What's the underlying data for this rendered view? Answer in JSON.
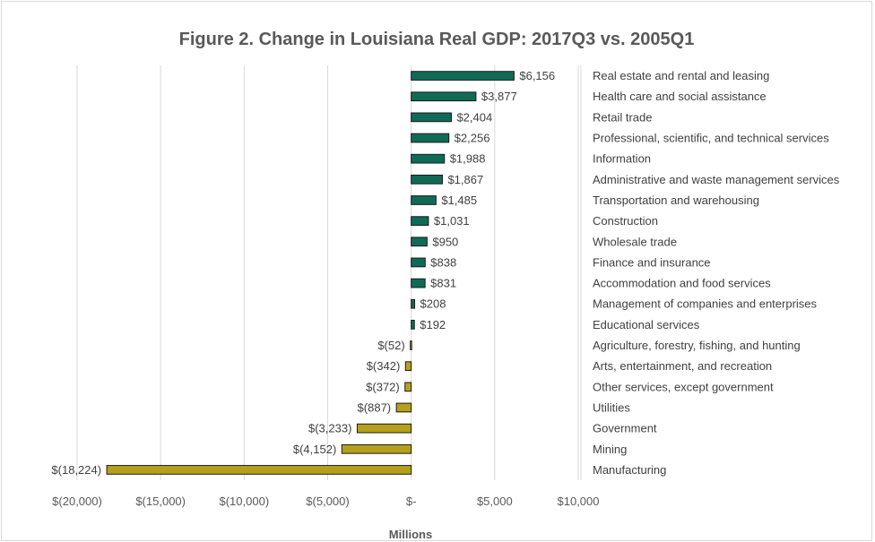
{
  "chart_data": {
    "type": "bar",
    "orientation": "horizontal",
    "title": "Figure 2. Change in Louisiana Real GDP: 2017Q3 vs. 2005Q1",
    "xlabel": "Millions",
    "ylabel": "",
    "xlim": [
      -20000,
      10000
    ],
    "grid": true,
    "legend": "none",
    "colors": {
      "positive": "#0f6b55",
      "negative": "#b5a01c",
      "bar_border": "#1a1a1a",
      "grid": "#d9d9d9"
    },
    "x_ticks": [
      {
        "value": -20000,
        "label": "$(20,000)"
      },
      {
        "value": -15000,
        "label": "$(15,000)"
      },
      {
        "value": -10000,
        "label": "$(10,000)"
      },
      {
        "value": -5000,
        "label": "$(5,000)"
      },
      {
        "value": 0,
        "label": "$-"
      },
      {
        "value": 5000,
        "label": "$5,000"
      },
      {
        "value": 10000,
        "label": "$10,000"
      }
    ],
    "categories": [
      "Real estate and rental and leasing",
      "Health care and social assistance",
      "Retail trade",
      "Professional, scientific, and technical services",
      "Information",
      "Administrative and waste management services",
      "Transportation and warehousing",
      "Construction",
      "Wholesale trade",
      "Finance and insurance",
      "Accommodation and food services",
      "Management of companies and enterprises",
      "Educational services",
      "Agriculture, forestry, fishing, and hunting",
      "Arts, entertainment, and recreation",
      "Other services, except government",
      "Utilities",
      "Government",
      "Mining",
      "Manufacturing"
    ],
    "values": [
      6156,
      3877,
      2404,
      2256,
      1988,
      1867,
      1485,
      1031,
      950,
      838,
      831,
      208,
      192,
      -52,
      -342,
      -372,
      -887,
      -3233,
      -4152,
      -18224
    ],
    "data_labels": [
      "$6,156",
      "$3,877",
      "$2,404",
      "$2,256",
      "$1,988",
      "$1,867",
      "$1,485",
      "$1,031",
      "$950",
      "$838",
      "$831",
      "$208",
      "$192",
      "$(52)",
      "$(342)",
      "$(372)",
      "$(887)",
      "$(3,233)",
      "$(4,152)",
      "$(18,224)"
    ]
  }
}
